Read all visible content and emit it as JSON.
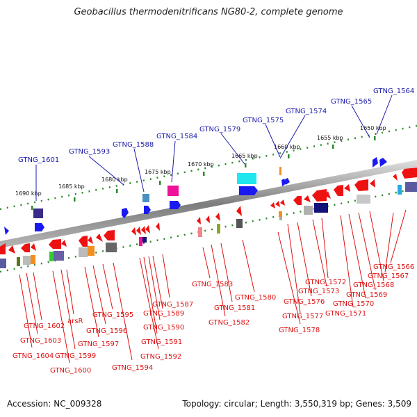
{
  "title": "Geobacillus thermodenitrificans NG80-2, complete genome",
  "footer": {
    "accession": "Accession: NC_009328",
    "summary": "Topology: circular; Length: 3,550,319 bp; Genes: 3,509"
  },
  "scale_labels": [
    "1650 kbp",
    "1655 kbp",
    "1660 kbp",
    "1665 kbp",
    "1670 kbp",
    "1675 kbp",
    "1680 kbp",
    "1685 kbp",
    "1690 kbp"
  ],
  "forward_gene_labels": [
    "GTNG_1564",
    "GTNG_1565",
    "GTNG_1574",
    "GTNG_1575",
    "GTNG_1579",
    "GTNG_1584",
    "GTNG_1588",
    "GTNG_1593",
    "GTNG_1601"
  ],
  "reverse_gene_labels": [
    "GTNG_1566",
    "GTNG_1567",
    "GTNG_1568",
    "GTNG_1569",
    "GTNG_1570",
    "GTNG_1571",
    "GTNG_1572",
    "GTNG_1573",
    "GTNG_1576",
    "GTNG_1577",
    "GTNG_1578",
    "GTNG_1580",
    "GTNG_1581",
    "GTNG_1582",
    "GTNG_1583",
    "GTNG_1587",
    "GTNG_1589",
    "GTNG_1590",
    "GTNG_1591",
    "GTNG_1592",
    "GTNG_1594",
    "GTNG_1595",
    "GTNG_1596",
    "GTNG_1597",
    "GTNG_1599",
    "GTNG_1600",
    "arsR",
    "GTNG_1602",
    "GTNG_1603",
    "GTNG_1604"
  ],
  "colors": {
    "forward_label": "#1a1aa8",
    "reverse_label": "#dd1111",
    "forward_arrow": "#1a1af0",
    "reverse_arrow": "#ee1111",
    "tick": "#2a8a2a",
    "backbone": "#8a8a8a"
  }
}
